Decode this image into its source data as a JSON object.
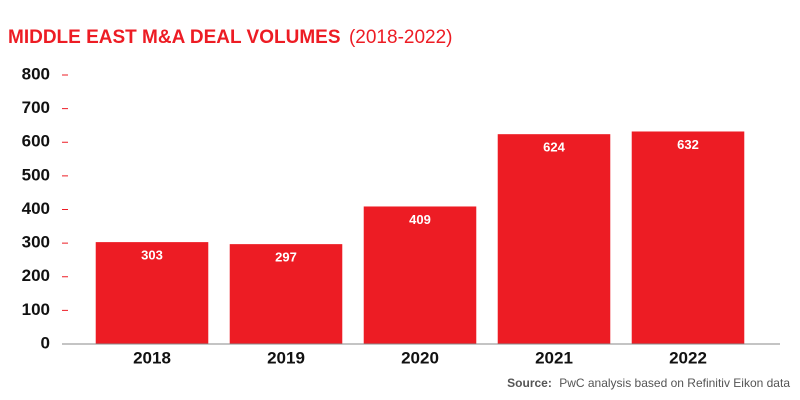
{
  "chart_data": {
    "type": "bar",
    "title": "MIDDLE EAST M&A DEAL VOLUMES",
    "subtitle": "(2018-2022)",
    "categories": [
      "2018",
      "2019",
      "2020",
      "2021",
      "2022"
    ],
    "values": [
      303,
      297,
      409,
      624,
      632
    ],
    "color": "#ed1c24",
    "ylim": [
      0,
      800
    ],
    "yticks": [
      0,
      100,
      200,
      300,
      400,
      500,
      600,
      700,
      800
    ],
    "source_label": "Source:",
    "source": "PwC analysis based on Refinitiv Eikon data"
  }
}
